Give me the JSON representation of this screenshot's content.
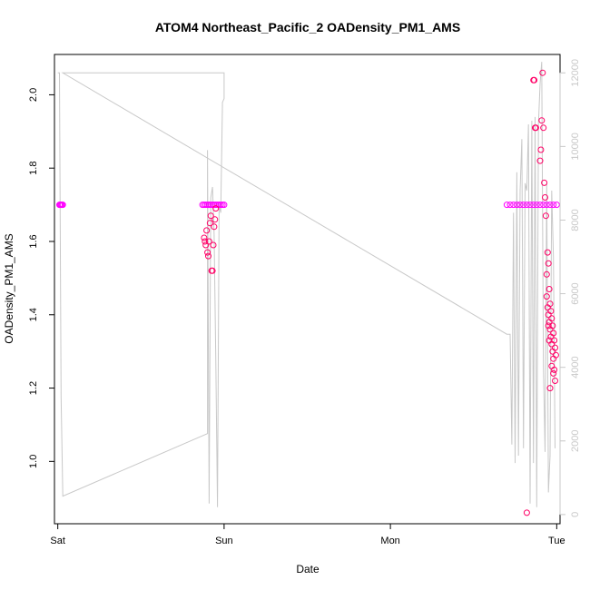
{
  "chart_data": {
    "type": "scatter",
    "title": "ATOM4 Northeast_Pacific_2 OADensity_PM1_AMS",
    "xlabel": "Date",
    "ylabel": "OADensity_PM1_AMS",
    "x_axis": {
      "type": "time",
      "range_days": [
        -0.02,
        3.02
      ],
      "ticks": [
        0,
        1,
        2,
        3
      ],
      "tick_labels": [
        "Sat",
        "Sun",
        "Mon",
        "Tue"
      ]
    },
    "y_left": {
      "range": [
        0.83,
        2.11
      ],
      "ticks": [
        1.0,
        1.2,
        1.4,
        1.6,
        1.8,
        2.0
      ],
      "tick_labels": [
        "1.0",
        "1.2",
        "1.4",
        "1.6",
        "1.8",
        "2.0"
      ]
    },
    "y_right": {
      "range": [
        -250,
        12500
      ],
      "ticks": [
        0,
        2000,
        4000,
        6000,
        8000,
        10000,
        12000
      ],
      "tick_labels": [
        "0",
        "2000",
        "4000",
        "6000",
        "8000",
        "10000",
        "12000"
      ],
      "color": "#c8c8c8"
    },
    "colors": {
      "points_flat": "#ff00ff",
      "points_var": "#ff0066",
      "line": "#c8c8c8"
    },
    "series": [
      {
        "type": "line",
        "axis": "right",
        "x": [
          0.0,
          0.01,
          0.02,
          0.03,
          0.9,
          0.9,
          0.91,
          0.92,
          0.93,
          0.94,
          0.95,
          0.96,
          0.97,
          0.98,
          0.99,
          1.0,
          1.0,
          0.03,
          0.03,
          2.7,
          2.72,
          2.73,
          2.74,
          2.75,
          2.76,
          2.77,
          2.78,
          2.79,
          2.8,
          2.81,
          2.82,
          2.83,
          2.84,
          2.85,
          2.86,
          2.87,
          2.88,
          2.89,
          2.9,
          2.91,
          2.92,
          2.93,
          2.94,
          2.95,
          2.96,
          2.97,
          2.98,
          2.99
        ],
        "y": [
          12000,
          12000,
          3200,
          500,
          2200,
          9900,
          300,
          8600,
          8900,
          7600,
          4300,
          200,
          8400,
          8200,
          11200,
          11300,
          12000,
          12000,
          12000,
          4900,
          4900,
          1900,
          8200,
          1400,
          9300,
          1600,
          8800,
          10200,
          1800,
          9000,
          8800,
          10600,
          300,
          10700,
          1400,
          10800,
          200,
          10600,
          11700,
          12300,
          4000,
          1700,
          9000,
          600,
          1600,
          8800,
          7000,
          1800
        ]
      },
      {
        "type": "scatter",
        "axis": "left",
        "name_group": "flat",
        "points": [
          [
            0.01,
            1.7
          ],
          [
            0.015,
            1.7
          ],
          [
            0.02,
            1.7
          ],
          [
            0.025,
            1.7
          ],
          [
            0.03,
            1.7
          ],
          [
            0.87,
            1.7
          ],
          [
            0.88,
            1.7
          ],
          [
            0.89,
            1.7
          ],
          [
            0.9,
            1.7
          ],
          [
            0.91,
            1.7
          ],
          [
            0.92,
            1.7
          ],
          [
            0.93,
            1.7
          ],
          [
            0.94,
            1.7
          ],
          [
            0.95,
            1.7
          ],
          [
            0.96,
            1.7
          ],
          [
            0.97,
            1.7
          ],
          [
            0.98,
            1.7
          ],
          [
            0.99,
            1.7
          ],
          [
            1.0,
            1.7
          ],
          [
            2.7,
            1.7
          ],
          [
            2.72,
            1.7
          ],
          [
            2.74,
            1.7
          ],
          [
            2.76,
            1.7
          ],
          [
            2.78,
            1.7
          ],
          [
            2.8,
            1.7
          ],
          [
            2.82,
            1.7
          ],
          [
            2.84,
            1.7
          ],
          [
            2.86,
            1.7
          ],
          [
            2.88,
            1.7
          ],
          [
            2.9,
            1.7
          ],
          [
            2.92,
            1.7
          ],
          [
            2.94,
            1.7
          ],
          [
            2.96,
            1.7
          ],
          [
            2.98,
            1.7
          ],
          [
            3.0,
            1.7
          ]
        ]
      },
      {
        "type": "scatter",
        "axis": "left",
        "name_group": "variable",
        "points": [
          [
            0.88,
            1.61
          ],
          [
            0.885,
            1.6
          ],
          [
            0.89,
            1.59
          ],
          [
            0.895,
            1.63
          ],
          [
            0.9,
            1.57
          ],
          [
            0.905,
            1.56
          ],
          [
            0.91,
            1.6
          ],
          [
            0.915,
            1.65
          ],
          [
            0.92,
            1.67
          ],
          [
            0.925,
            1.52
          ],
          [
            0.93,
            1.52
          ],
          [
            0.935,
            1.59
          ],
          [
            0.94,
            1.64
          ],
          [
            0.945,
            1.66
          ],
          [
            0.95,
            1.69
          ],
          [
            2.82,
            0.86
          ],
          [
            2.86,
            2.04
          ],
          [
            2.865,
            2.04
          ],
          [
            2.87,
            1.91
          ],
          [
            2.875,
            1.91
          ],
          [
            2.9,
            1.82
          ],
          [
            2.905,
            1.85
          ],
          [
            2.91,
            1.93
          ],
          [
            2.915,
            2.06
          ],
          [
            2.92,
            1.91
          ],
          [
            2.925,
            1.76
          ],
          [
            2.93,
            1.72
          ],
          [
            2.935,
            1.67
          ],
          [
            2.94,
            1.51
          ],
          [
            2.945,
            1.57
          ],
          [
            2.95,
            1.54
          ],
          [
            2.955,
            1.47
          ],
          [
            2.94,
            1.45
          ],
          [
            2.945,
            1.42
          ],
          [
            2.95,
            1.4
          ],
          [
            2.955,
            1.38
          ],
          [
            2.96,
            1.36
          ],
          [
            2.965,
            1.34
          ],
          [
            2.97,
            1.32
          ],
          [
            2.975,
            1.3
          ],
          [
            2.98,
            1.28
          ],
          [
            2.985,
            1.25
          ],
          [
            2.99,
            1.22
          ],
          [
            2.96,
            1.43
          ],
          [
            2.965,
            1.41
          ],
          [
            2.97,
            1.39
          ],
          [
            2.975,
            1.37
          ],
          [
            2.98,
            1.35
          ],
          [
            2.985,
            1.33
          ],
          [
            2.99,
            1.31
          ],
          [
            2.995,
            1.29
          ],
          [
            2.96,
            1.2
          ],
          [
            2.97,
            1.26
          ],
          [
            2.98,
            1.24
          ],
          [
            2.95,
            1.37
          ],
          [
            2.955,
            1.33
          ]
        ]
      }
    ]
  }
}
